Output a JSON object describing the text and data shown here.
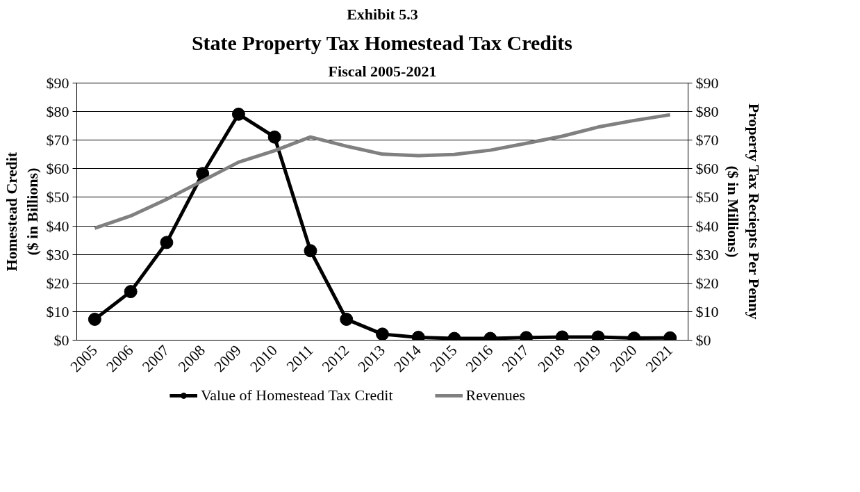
{
  "chart_data": {
    "type": "line",
    "annotations": [
      "Exhibit 5.3"
    ],
    "title": "State Property Tax Homestead Tax Credits",
    "subtitle": "Fiscal 2005-2021",
    "ylabel": "Homestead Credit\n($ in Billions)",
    "y2label": "Property Tax Reciepts Per Penny\n($ in Millions)",
    "categories": [
      "2005",
      "2006",
      "2007",
      "2008",
      "2009",
      "2010",
      "2011",
      "2012",
      "2013",
      "2014",
      "2015",
      "2016",
      "2017",
      "2018",
      "2019",
      "2020",
      "2021"
    ],
    "series": [
      {
        "name": "Value of Homestead Tax Credit",
        "color": "#000000",
        "marker": "circle",
        "values": [
          7.3,
          17,
          34.2,
          58.3,
          79.1,
          71.1,
          31.3,
          7.3,
          2.1,
          1.0,
          0.6,
          0.6,
          0.9,
          1.1,
          1.1,
          0.7,
          0.8
        ]
      },
      {
        "name": "Revenues",
        "color": "#808080",
        "marker": "none",
        "axis": "y2",
        "values": [
          39.2,
          43.5,
          49.3,
          55.8,
          62.3,
          66.3,
          71.1,
          67.9,
          65.1,
          64.6,
          65.0,
          66.5,
          68.9,
          71.4,
          74.6,
          76.9,
          78.9
        ]
      }
    ],
    "ylim": [
      0,
      90
    ],
    "yticks": [
      {
        "value": 0,
        "label": "$0"
      },
      {
        "value": 10,
        "label": "$10"
      },
      {
        "value": 20,
        "label": "$20"
      },
      {
        "value": 30,
        "label": "$30"
      },
      {
        "value": 40,
        "label": "$40"
      },
      {
        "value": 50,
        "label": "$50"
      },
      {
        "value": 60,
        "label": "$60"
      },
      {
        "value": 70,
        "label": "$70"
      },
      {
        "value": 80,
        "label": "$80"
      },
      {
        "value": 90,
        "label": "$90"
      }
    ],
    "y2lim": [
      0,
      90
    ],
    "y2ticks": [
      {
        "value": 0,
        "label": "$0"
      },
      {
        "value": 10,
        "label": "$10"
      },
      {
        "value": 20,
        "label": "$20"
      },
      {
        "value": 30,
        "label": "$30"
      },
      {
        "value": 40,
        "label": "$40"
      },
      {
        "value": 50,
        "label": "$50"
      },
      {
        "value": 60,
        "label": "$60"
      },
      {
        "value": 70,
        "label": "$70"
      },
      {
        "value": 80,
        "label": "$80"
      },
      {
        "value": 90,
        "label": "$90"
      }
    ],
    "grid": "y",
    "legend": "bottom",
    "line_style": "solid"
  }
}
